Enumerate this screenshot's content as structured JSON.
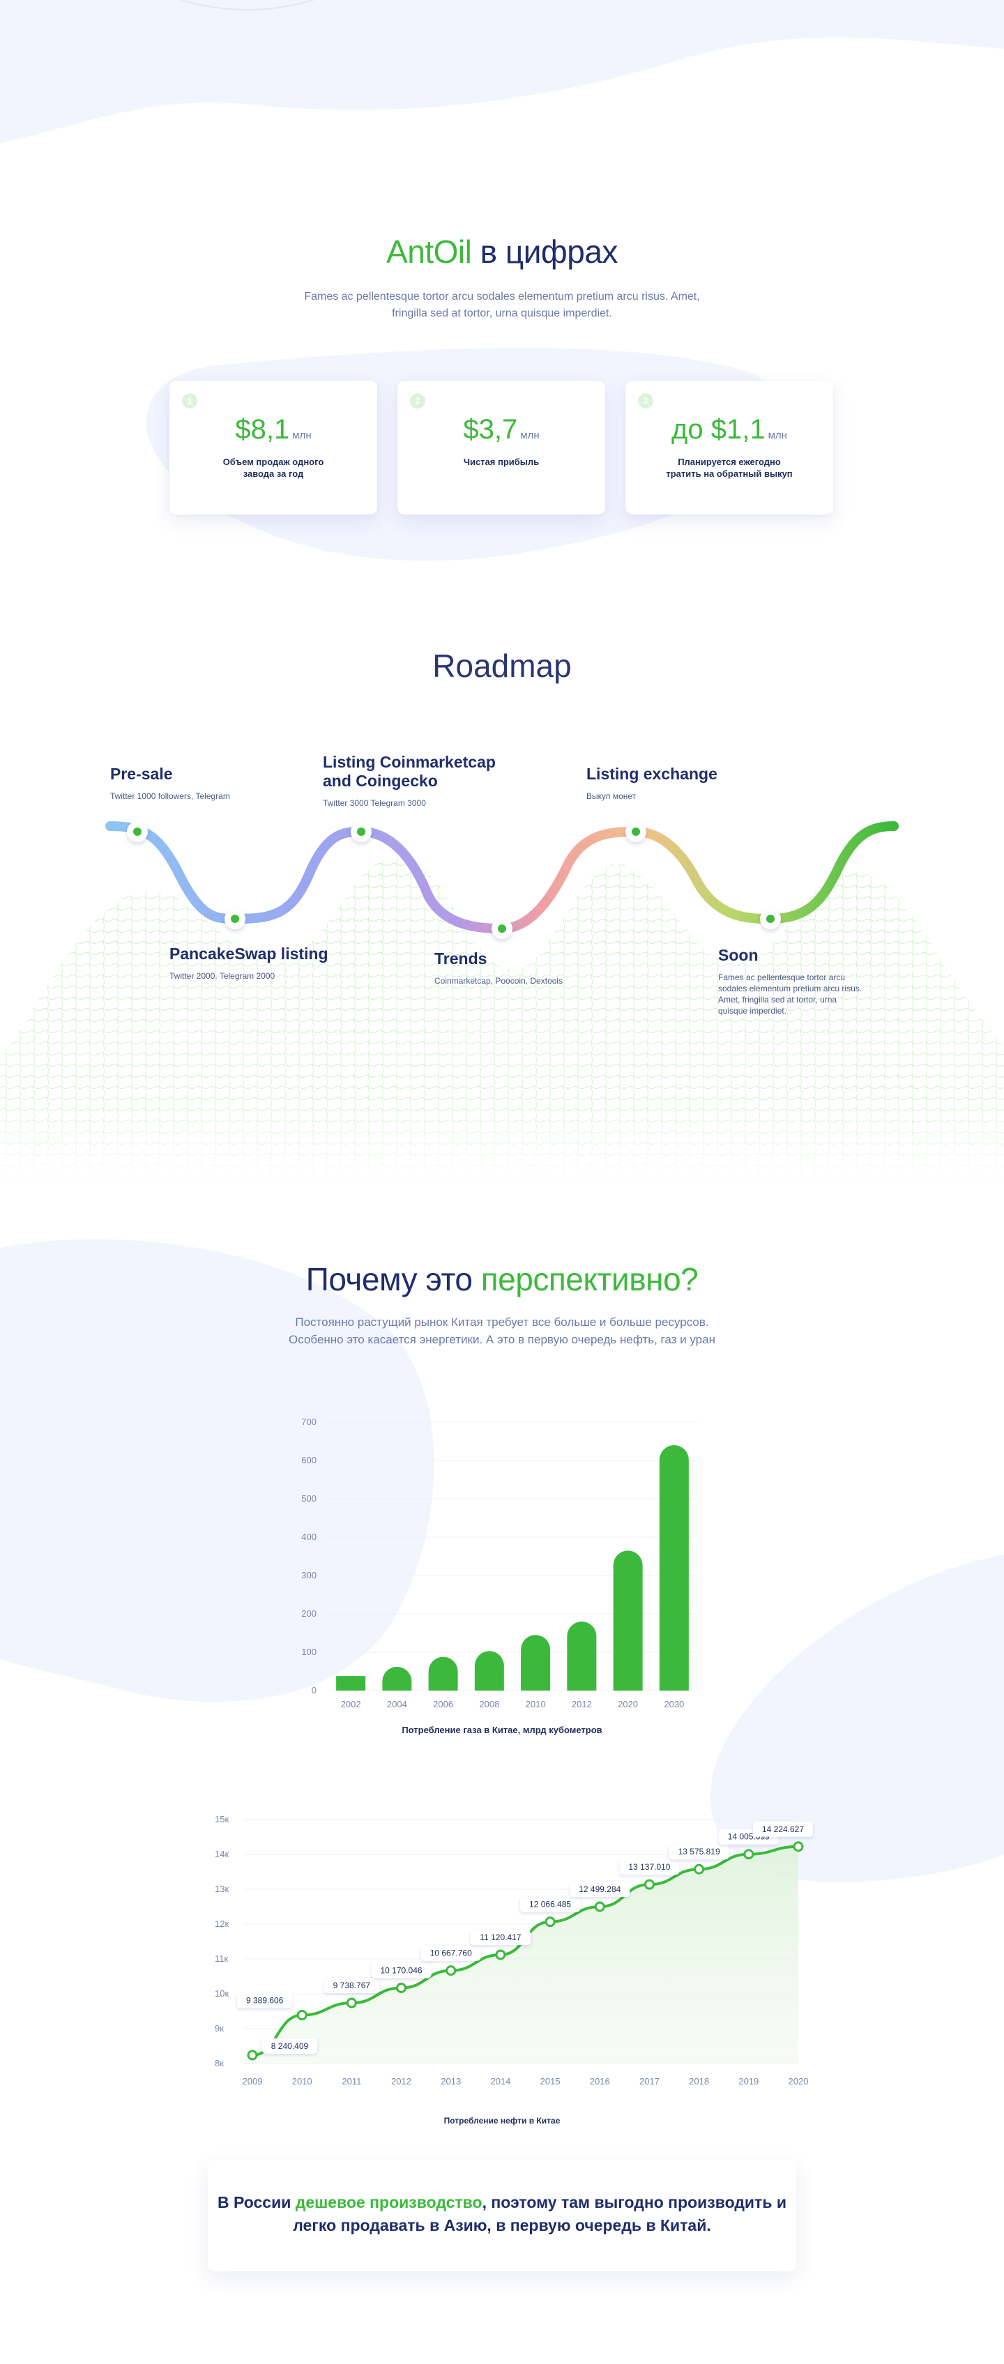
{
  "section_stats": {
    "title_green": "AntOil",
    "title_rest": " в цифрах",
    "subtitle_line1": "Fames ac pellentesque tortor arcu sodales elementum pretium arcu risus. Amet,",
    "subtitle_line2": "fringilla sed at tortor, urna quisque imperdiet.",
    "cards": [
      {
        "num": "1",
        "value": "$8,1",
        "unit": "млн",
        "desc_line1": "Объем продаж одного",
        "desc_line2": "завода за год"
      },
      {
        "num": "2",
        "value": "$3,7",
        "unit": "млн",
        "desc_line1": "Чистая прибыль",
        "desc_line2": ""
      },
      {
        "num": "3",
        "value": "до $1,1",
        "unit": "млн",
        "desc_line1": "Планируется ежегодно",
        "desc_line2": "тратить на обратный выкуп"
      }
    ]
  },
  "roadmap": {
    "title": "Roadmap",
    "milestones": [
      {
        "title": "Pre-sale",
        "sub": "Twitter 1000 followers, Telegram"
      },
      {
        "title_line1": "Listing Coinmarketcap",
        "title_line2": "and Coingecko",
        "sub": "Twitter 3000 Telegram 3000"
      },
      {
        "title": "Listing exchange",
        "sub": "Выкуп монет"
      },
      {
        "title": "PancakeSwap listing",
        "sub": "Twitter 2000. Telegram 2000"
      },
      {
        "title": "Trends",
        "sub": "Coinmarketcap, Poocoin, Dextools"
      },
      {
        "title": "Soon",
        "sub_line1": "Fames ac pellentesque tortor arcu",
        "sub_line2": "sodales elementum pretium arcu risus.",
        "sub_line3": "Amet, fringilla sed at tortor, urna",
        "sub_line4": "quisque imperdiet."
      }
    ]
  },
  "why": {
    "title_rest": "Почему это ",
    "title_green": "перспективно?",
    "subtitle_line1": "Постоянно растущий рынок Китая требует все больше и больше ресурсов.",
    "subtitle_line2": "Особенно это касается энергетики. А это в первую очередь нефть, газ и уран"
  },
  "chart_data": [
    {
      "type": "bar",
      "categories": [
        "2002",
        "2004",
        "2006",
        "2008",
        "2010",
        "2012",
        "2020",
        "2030"
      ],
      "values": [
        38,
        62,
        88,
        103,
        145,
        180,
        365,
        640
      ],
      "ylim": [
        0,
        700
      ],
      "yticks": [
        "0",
        "100",
        "200",
        "300",
        "400",
        "500",
        "600",
        "700"
      ],
      "caption": "Потребление газа в Китае, млрд кубометров",
      "grid": true,
      "color": "#3cb93c"
    },
    {
      "type": "area",
      "x": [
        "2009",
        "2010",
        "2011",
        "2012",
        "2013",
        "2014",
        "2015",
        "2016",
        "2017",
        "2018",
        "2019",
        "2020"
      ],
      "values": [
        8240.409,
        9389.606,
        9738.767,
        10170.046,
        10667.76,
        11120.417,
        12066.485,
        12499.284,
        13137.01,
        13575.819,
        14005.099,
        14224.627
      ],
      "labels": [
        "8 240.409",
        "9 389.606",
        "9 738.767",
        "10 170.046",
        "10 667.760",
        "11 120.417",
        "12 066.485",
        "12 499.284",
        "13 137.010",
        "13 575.819",
        "14 005.099",
        "14 224.627"
      ],
      "ylim": [
        8000,
        15000
      ],
      "yticks": [
        "8к",
        "9к",
        "10к",
        "11к",
        "12к",
        "13к",
        "14к",
        "15к"
      ],
      "caption": "Потребление нефти в Китае",
      "grid": true,
      "color": "#3cb93c"
    }
  ],
  "final_box": {
    "text_start": "В России ",
    "text_green": "дешевое производство",
    "text_rest_line1": ", поэтому там выгодно производить и",
    "text_line2": "легко продавать в Азию, в первую очередь в Китай."
  }
}
